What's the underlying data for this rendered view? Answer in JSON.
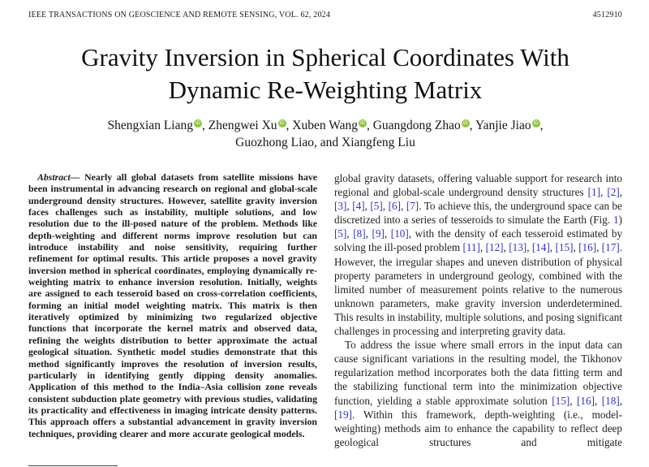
{
  "header": {
    "journal": "IEEE TRANSACTIONS ON GEOSCIENCE AND REMOTE SENSING, VOL. 62, 2024",
    "article_id": "4512910"
  },
  "title": {
    "line1": "Gravity Inversion in Spherical Coordinates With",
    "line2": "Dynamic Re-Weighting Matrix"
  },
  "authors": {
    "orcid_label": "iD",
    "orcid_color": "#8CC63F",
    "line1": [
      {
        "name": "Shengxian Liang",
        "orcid": true,
        "suffix": ", "
      },
      {
        "name": "Zhengwei Xu",
        "orcid": true,
        "suffix": ", "
      },
      {
        "name": "Xuben Wang",
        "orcid": true,
        "suffix": ", "
      },
      {
        "name": "Guangdong Zhao",
        "orcid": true,
        "suffix": ", "
      },
      {
        "name": "Yanjie Jiao",
        "orcid": true,
        "suffix": ","
      }
    ],
    "line2": "Guozhong Liao, and Xiangfeng Liu"
  },
  "abstract": {
    "label": "Abstract—",
    "text": "Nearly all global datasets from satellite missions have been instrumental in advancing research on regional and global-scale underground density structures. However, satellite gravity inversion faces challenges such as instability, multiple solutions, and low resolution due to the ill-posed nature of the problem. Methods like depth-weighting and different norms improve resolution but can introduce instability and noise sensitivity, requiring further refinement for optimal results. This article proposes a novel gravity inversion method in spherical coordinates, employing dynamically re-weighting matrix to enhance inversion resolution. Initially, weights are assigned to each tesseroid based on cross-correlation coefficients, forming an initial model weighting matrix. This matrix is then iteratively optimized by minimizing two regularized objective functions that incorporate the kernel matrix and observed data, refining the weights distribution to better approximate the actual geological situation. Synthetic model studies demonstrate that this method significantly improves the resolution of inversion results, particularly in identifying gently dipping density anomalies. Application of this method to the India–Asia collision zone reveals consistent subduction plate geometry with previous studies, validating its practicality and effectiveness in imaging intricate density patterns. This approach offers a substantial advancement in gravity inversion techniques, providing clearer and more accurate geological models."
  },
  "body": {
    "citation_color": "#3333cc",
    "paragraphs": [
      {
        "indent": false,
        "justify_last": false,
        "segments": [
          {
            "t": "x",
            "v": "global gravity datasets, offering valuable support for research into regional and global-scale underground density structures "
          },
          {
            "t": "c",
            "v": "[1]"
          },
          {
            "t": "x",
            "v": ", "
          },
          {
            "t": "c",
            "v": "[2]"
          },
          {
            "t": "x",
            "v": ", "
          },
          {
            "t": "c",
            "v": "[3]"
          },
          {
            "t": "x",
            "v": ", "
          },
          {
            "t": "c",
            "v": "[4]"
          },
          {
            "t": "x",
            "v": ", "
          },
          {
            "t": "c",
            "v": "[5]"
          },
          {
            "t": "x",
            "v": ", "
          },
          {
            "t": "c",
            "v": "[6]"
          },
          {
            "t": "x",
            "v": ", "
          },
          {
            "t": "c",
            "v": "[7]"
          },
          {
            "t": "x",
            "v": ". To achieve this, the underground space can be discretized into a series of tesseroids to simulate the Earth (Fig. "
          },
          {
            "t": "c",
            "v": "1"
          },
          {
            "t": "x",
            "v": ") "
          },
          {
            "t": "c",
            "v": "[5]"
          },
          {
            "t": "x",
            "v": ", "
          },
          {
            "t": "c",
            "v": "[8]"
          },
          {
            "t": "x",
            "v": ", "
          },
          {
            "t": "c",
            "v": "[9]"
          },
          {
            "t": "x",
            "v": ", "
          },
          {
            "t": "c",
            "v": "[10]"
          },
          {
            "t": "x",
            "v": ", with the density of each tesseroid estimated by solving the ill-posed problem "
          },
          {
            "t": "c",
            "v": "[11]"
          },
          {
            "t": "x",
            "v": ", "
          },
          {
            "t": "c",
            "v": "[12]"
          },
          {
            "t": "x",
            "v": ", "
          },
          {
            "t": "c",
            "v": "[13]"
          },
          {
            "t": "x",
            "v": ", "
          },
          {
            "t": "c",
            "v": "[14]"
          },
          {
            "t": "x",
            "v": ", "
          },
          {
            "t": "c",
            "v": "[15]"
          },
          {
            "t": "x",
            "v": ", "
          },
          {
            "t": "c",
            "v": "[16]"
          },
          {
            "t": "x",
            "v": ", "
          },
          {
            "t": "c",
            "v": "[17]"
          },
          {
            "t": "x",
            "v": ". However, the irregular shapes and uneven distribution of physical property parameters in underground geology, combined with the limited number of measurement points relative to the numerous unknown parameters, make gravity inversion underdetermined. This results in instability, multiple solutions, and posing significant challenges in processing and interpreting gravity data."
          }
        ]
      },
      {
        "indent": true,
        "justify_last": true,
        "segments": [
          {
            "t": "x",
            "v": "To address the issue where small errors in the input data can cause significant variations in the resulting model, the Tikhonov regularization method incorporates both the data fitting term and the stabilizing functional term into the minimization objective function, yielding a stable approximate solution "
          },
          {
            "t": "c",
            "v": "[15]"
          },
          {
            "t": "x",
            "v": ", "
          },
          {
            "t": "c",
            "v": "[16]"
          },
          {
            "t": "x",
            "v": ", "
          },
          {
            "t": "c",
            "v": "[18]"
          },
          {
            "t": "x",
            "v": ", "
          },
          {
            "t": "c",
            "v": "[19]"
          },
          {
            "t": "x",
            "v": ". Within this framework, depth-weighting (i.e., model-weighting) methods aim to enhance the capability to reflect deep geological structures and mitigate"
          }
        ]
      }
    ]
  }
}
